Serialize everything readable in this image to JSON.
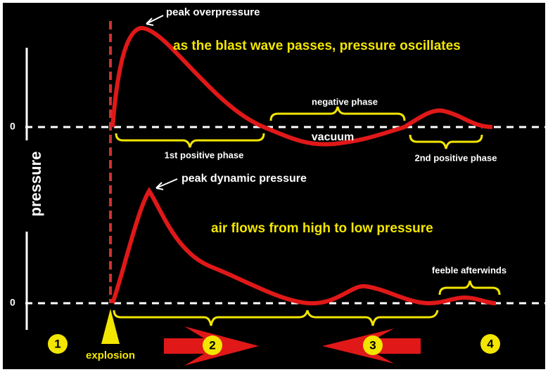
{
  "upper": {
    "peak_label": "peak overpressure",
    "headline": "as the blast wave passes, pressure oscillates",
    "zero": "0",
    "negative_phase": "negative phase",
    "first_positive": "1st positive phase",
    "vacuum": "vacuum",
    "second_positive": "2nd positive phase"
  },
  "axis_label": "pressure",
  "lower": {
    "peak_label": "peak  dynamic pressure",
    "headline": "air flows from high to low pressure",
    "zero": "0",
    "afterwinds": "feeble afterwinds",
    "explosion": "explosion"
  },
  "stages": [
    "1",
    "2",
    "3",
    "4"
  ]
}
